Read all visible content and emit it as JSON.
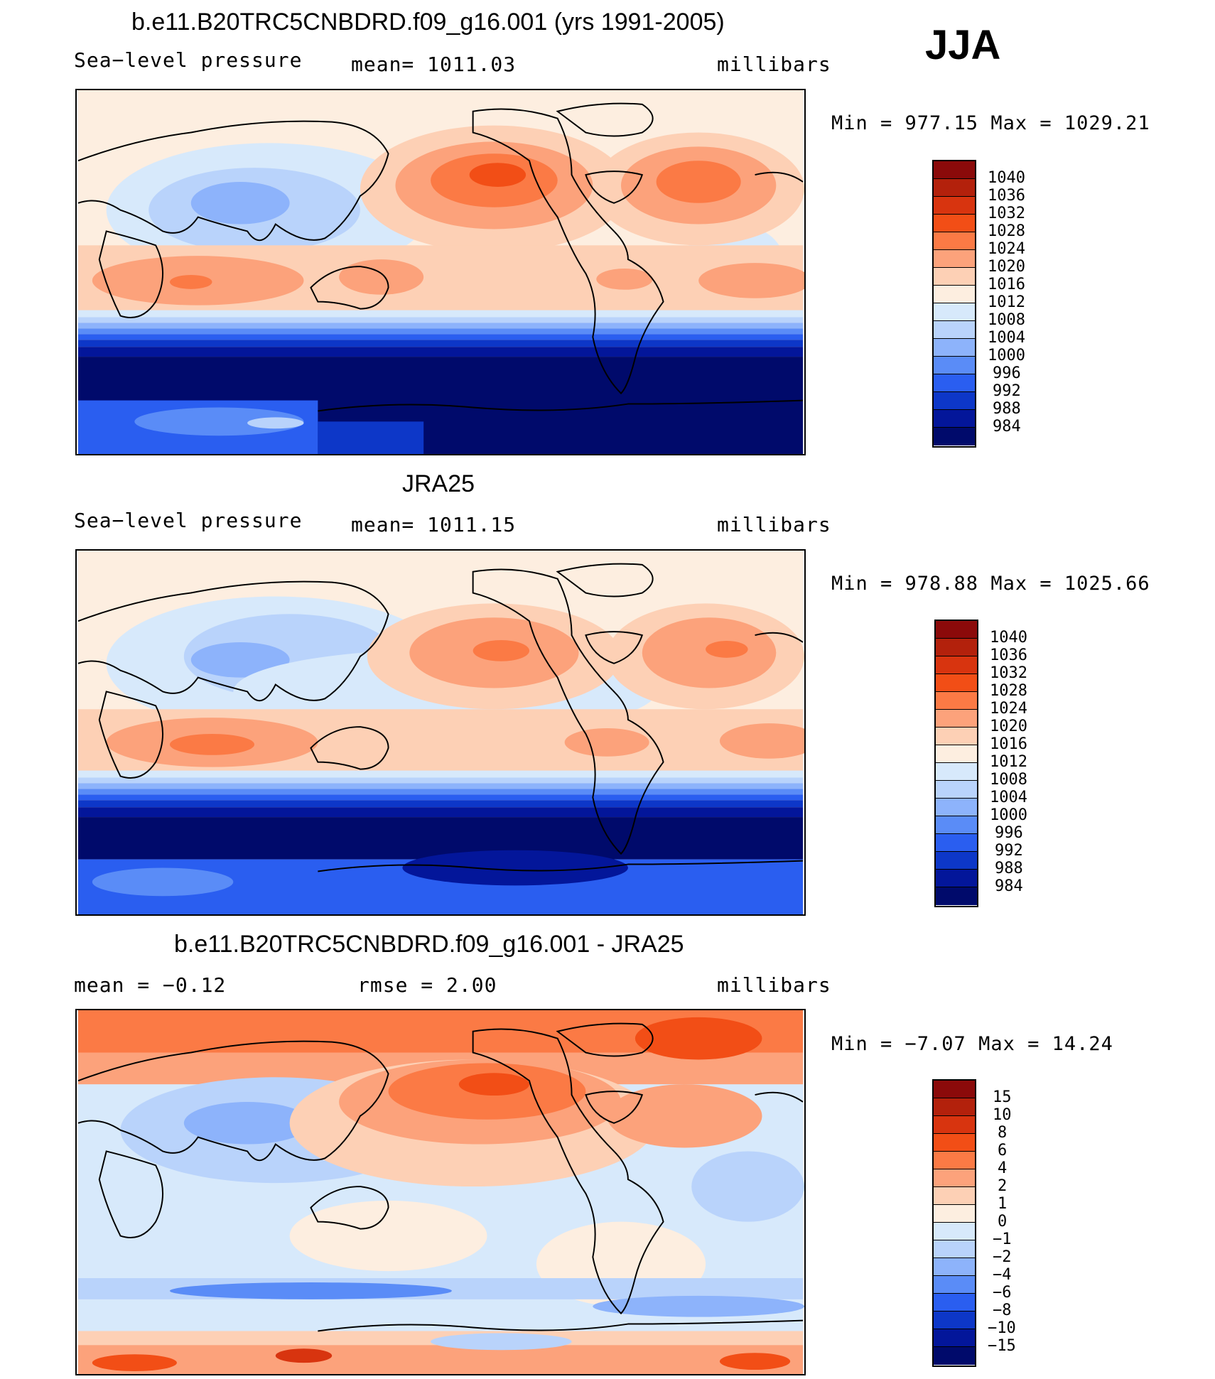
{
  "season": "JJA",
  "panels": [
    {
      "title": "b.e11.B20TRC5CNBDRD.f09_g16.001 (yrs 1991-2005)",
      "left_label": "Sea−level pressure",
      "center_label": "mean=  1011.03",
      "right_label": "millibars",
      "minmax": "Min  =  977.15  Max  =  1029.21",
      "legend_labels": [
        "1040",
        "1036",
        "1032",
        "1028",
        "1024",
        "1020",
        "1016",
        "1012",
        "1008",
        "1004",
        "1000",
        "996",
        "992",
        "988",
        "984"
      ]
    },
    {
      "title": "JRA25",
      "left_label": "Sea−level pressure",
      "center_label": "mean=  1011.15",
      "right_label": "millibars",
      "minmax": "Min  =  978.88  Max  =  1025.66",
      "legend_labels": [
        "1040",
        "1036",
        "1032",
        "1028",
        "1024",
        "1020",
        "1016",
        "1012",
        "1008",
        "1004",
        "1000",
        "996",
        "992",
        "988",
        "984"
      ]
    },
    {
      "title": "b.e11.B20TRC5CNBDRD.f09_g16.001 - JRA25",
      "left_label": "mean  =    −0.12",
      "center_label": "rmse  =     2.00",
      "right_label": "millibars",
      "minmax": "Min  =   −7.07  Max  =    14.24",
      "legend_labels": [
        "15",
        "10",
        "8",
        "6",
        "4",
        "2",
        "1",
        "0",
        "−1",
        "−2",
        "−4",
        "−6",
        "−8",
        "−10",
        "−15"
      ]
    }
  ],
  "colors": {
    "scale": [
      "#8b0a0a",
      "#b3210c",
      "#d8340f",
      "#f24e16",
      "#fb7a45",
      "#fca27b",
      "#fdd0b5",
      "#fdeee0",
      "#d7e9fb",
      "#b9d3fb",
      "#8db3fb",
      "#5a8cf7",
      "#2a5ef0",
      "#0d37c8",
      "#03169a",
      "#000a6b"
    ],
    "land_outline": "#000000"
  }
}
